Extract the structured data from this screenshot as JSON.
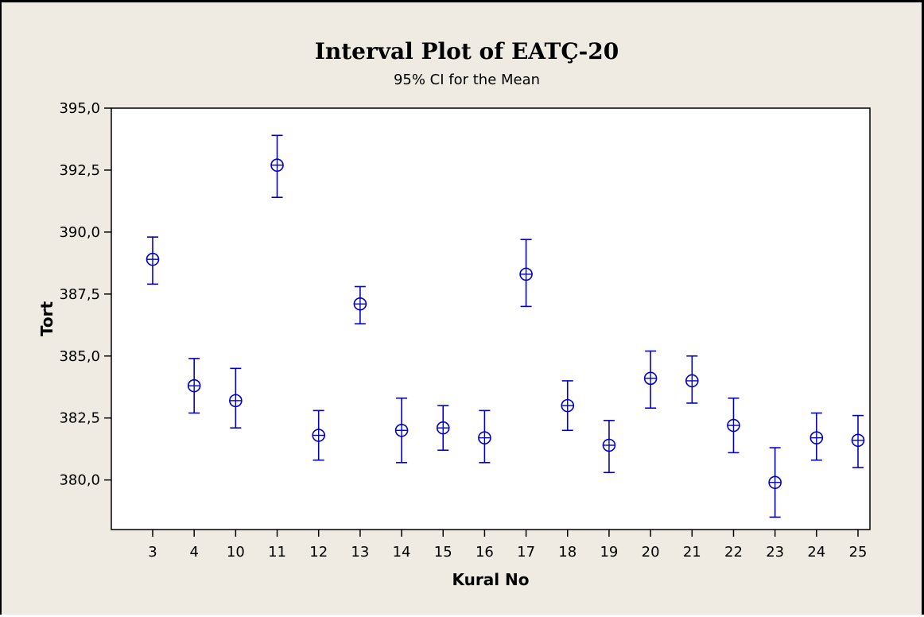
{
  "chart_data": {
    "type": "interval",
    "title": "Interval Plot of EATÇ-20",
    "subtitle": "95% CI for the Mean",
    "xlabel": "Kural No",
    "ylabel": "Tort",
    "categories": [
      "3",
      "4",
      "10",
      "11",
      "12",
      "13",
      "14",
      "15",
      "16",
      "17",
      "18",
      "19",
      "20",
      "21",
      "22",
      "23",
      "24",
      "25"
    ],
    "mean": [
      388.9,
      383.8,
      383.2,
      392.7,
      381.8,
      387.1,
      382.0,
      382.1,
      381.7,
      388.3,
      383.0,
      381.4,
      384.1,
      384.0,
      382.2,
      379.9,
      381.7,
      381.6
    ],
    "lower": [
      387.9,
      382.7,
      382.1,
      391.4,
      380.8,
      386.3,
      380.7,
      381.2,
      380.7,
      387.0,
      382.0,
      380.3,
      382.9,
      383.1,
      381.1,
      378.5,
      380.8,
      380.5
    ],
    "upper": [
      389.8,
      384.9,
      384.5,
      393.9,
      382.8,
      387.8,
      383.3,
      383.0,
      382.8,
      389.7,
      384.0,
      382.4,
      385.2,
      385.0,
      383.3,
      381.3,
      382.7,
      382.6
    ],
    "yticks": [
      "380,0",
      "382,5",
      "385,0",
      "387,5",
      "390,0",
      "392,5",
      "395,0"
    ],
    "ytick_values": [
      380.0,
      382.5,
      385.0,
      387.5,
      390.0,
      392.5,
      395.0
    ],
    "ylim": [
      378.0,
      395.0
    ],
    "marker_color": "#0000cc",
    "grid": false
  }
}
